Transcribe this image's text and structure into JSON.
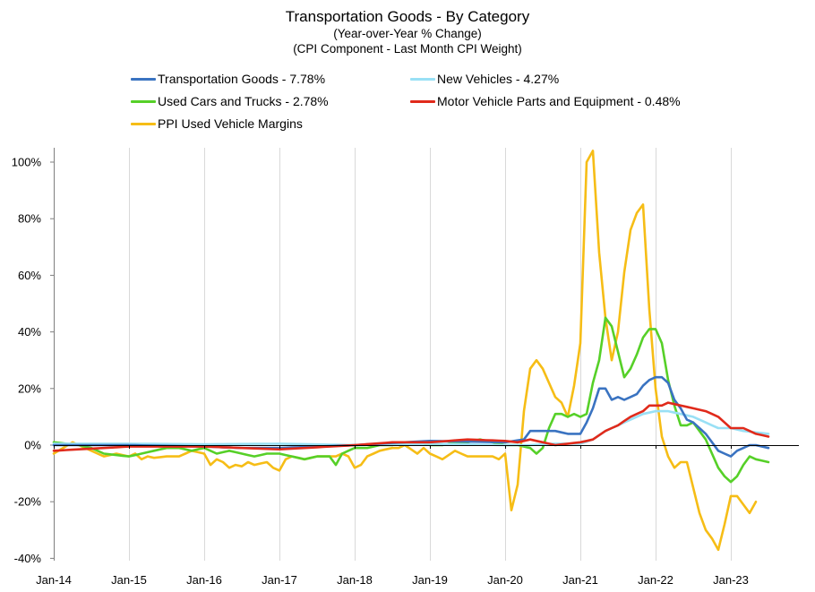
{
  "chart_data": {
    "type": "line",
    "title": "Transportation Goods - By Category",
    "subtitle_lines": [
      "(Year-over-Year % Change)",
      "(CPI Component - Last Month CPI Weight)"
    ],
    "xlabel": "",
    "ylabel": "",
    "x_start": "Jan-14",
    "months_count": 116,
    "x_tick_labels": [
      "Jan-14",
      "Jan-15",
      "Jan-16",
      "Jan-17",
      "Jan-18",
      "Jan-19",
      "Jan-20",
      "Jan-21",
      "Jan-22",
      "Jan-23"
    ],
    "x_tick_month_index": [
      0,
      12,
      24,
      36,
      48,
      60,
      72,
      84,
      96,
      108
    ],
    "ylim": [
      -40,
      105
    ],
    "y_ticks": [
      -40,
      -20,
      0,
      20,
      40,
      60,
      80,
      100
    ],
    "y_tick_labels": [
      "-40%",
      "-20%",
      "0%",
      "20%",
      "40%",
      "60%",
      "80%",
      "100%"
    ],
    "grid": "vertical",
    "legend_position": "top",
    "series": [
      {
        "name": "Transportation Goods - 7.78%",
        "color": "#3A73C1",
        "anchors": [
          [
            0,
            0
          ],
          [
            12,
            0
          ],
          [
            24,
            -0.5
          ],
          [
            30,
            -1
          ],
          [
            36,
            -1
          ],
          [
            48,
            0
          ],
          [
            60,
            1.5
          ],
          [
            72,
            1
          ],
          [
            75,
            2
          ],
          [
            76,
            5
          ],
          [
            80,
            5
          ],
          [
            82,
            4
          ],
          [
            84,
            4
          ],
          [
            85,
            8
          ],
          [
            86,
            13
          ],
          [
            87,
            20
          ],
          [
            88,
            20
          ],
          [
            89,
            16
          ],
          [
            90,
            17
          ],
          [
            91,
            16
          ],
          [
            93,
            18
          ],
          [
            94,
            21
          ],
          [
            95,
            23
          ],
          [
            96,
            24
          ],
          [
            97,
            24
          ],
          [
            98,
            22
          ],
          [
            99,
            16
          ],
          [
            100,
            13
          ],
          [
            101,
            9
          ],
          [
            102,
            8
          ],
          [
            103,
            6
          ],
          [
            104,
            4
          ],
          [
            105,
            1
          ],
          [
            106,
            -2
          ],
          [
            107,
            -3
          ],
          [
            108,
            -4
          ],
          [
            109,
            -2
          ],
          [
            110,
            -1
          ],
          [
            111,
            0
          ],
          [
            112,
            0
          ],
          [
            113,
            -0.5
          ],
          [
            114,
            -1
          ]
        ]
      },
      {
        "name": "New Vehicles - 4.27%",
        "color": "#99E0F5",
        "anchors": [
          [
            0,
            0.5
          ],
          [
            12,
            0.5
          ],
          [
            24,
            0.3
          ],
          [
            36,
            0.5
          ],
          [
            48,
            0
          ],
          [
            60,
            0.5
          ],
          [
            72,
            0
          ],
          [
            76,
            0
          ],
          [
            80,
            0.5
          ],
          [
            84,
            0.5
          ],
          [
            86,
            2
          ],
          [
            88,
            5
          ],
          [
            90,
            7
          ],
          [
            92,
            9
          ],
          [
            94,
            11
          ],
          [
            96,
            12
          ],
          [
            98,
            12
          ],
          [
            100,
            11
          ],
          [
            102,
            10
          ],
          [
            104,
            8
          ],
          [
            106,
            6
          ],
          [
            108,
            6
          ],
          [
            110,
            5
          ],
          [
            112,
            4.5
          ],
          [
            114,
            4
          ]
        ]
      },
      {
        "name": "Used Cars and Trucks - 2.78%",
        "color": "#56D028",
        "anchors": [
          [
            0,
            1
          ],
          [
            4,
            0
          ],
          [
            6,
            -1
          ],
          [
            8,
            -3
          ],
          [
            10,
            -3.5
          ],
          [
            12,
            -4
          ],
          [
            14,
            -3
          ],
          [
            16,
            -2
          ],
          [
            18,
            -1
          ],
          [
            20,
            -1
          ],
          [
            22,
            -2
          ],
          [
            24,
            -1
          ],
          [
            26,
            -3
          ],
          [
            28,
            -2
          ],
          [
            30,
            -3
          ],
          [
            32,
            -4
          ],
          [
            34,
            -3
          ],
          [
            36,
            -3
          ],
          [
            38,
            -4
          ],
          [
            40,
            -5
          ],
          [
            42,
            -4
          ],
          [
            44,
            -4
          ],
          [
            45,
            -7
          ],
          [
            46,
            -3
          ],
          [
            48,
            -1
          ],
          [
            50,
            -1
          ],
          [
            52,
            0
          ],
          [
            54,
            0
          ],
          [
            56,
            1
          ],
          [
            58,
            1
          ],
          [
            60,
            0
          ],
          [
            62,
            0
          ],
          [
            64,
            1
          ],
          [
            66,
            1
          ],
          [
            68,
            2
          ],
          [
            70,
            1
          ],
          [
            72,
            0
          ],
          [
            74,
            0
          ],
          [
            76,
            -1
          ],
          [
            77,
            -3
          ],
          [
            78,
            -1
          ],
          [
            79,
            6
          ],
          [
            80,
            11
          ],
          [
            81,
            11
          ],
          [
            82,
            10
          ],
          [
            83,
            11
          ],
          [
            84,
            10
          ],
          [
            85,
            11
          ],
          [
            86,
            22
          ],
          [
            87,
            30
          ],
          [
            88,
            45
          ],
          [
            89,
            42
          ],
          [
            90,
            33
          ],
          [
            91,
            24
          ],
          [
            92,
            27
          ],
          [
            93,
            32
          ],
          [
            94,
            38
          ],
          [
            95,
            41
          ],
          [
            96,
            41
          ],
          [
            97,
            36
          ],
          [
            98,
            23
          ],
          [
            99,
            14
          ],
          [
            100,
            7
          ],
          [
            101,
            7
          ],
          [
            102,
            8
          ],
          [
            103,
            5
          ],
          [
            104,
            2
          ],
          [
            105,
            -3
          ],
          [
            106,
            -8
          ],
          [
            107,
            -11
          ],
          [
            108,
            -13
          ],
          [
            109,
            -11
          ],
          [
            110,
            -7
          ],
          [
            111,
            -4
          ],
          [
            112,
            -5
          ],
          [
            113,
            -5.5
          ],
          [
            114,
            -6
          ]
        ]
      },
      {
        "name": "Motor Vehicle Parts and Equipment - 0.48%",
        "color": "#E02A1B",
        "anchors": [
          [
            0,
            -2
          ],
          [
            12,
            -0.5
          ],
          [
            24,
            -0.5
          ],
          [
            30,
            -1
          ],
          [
            36,
            -1.5
          ],
          [
            48,
            0
          ],
          [
            54,
            1
          ],
          [
            60,
            1
          ],
          [
            66,
            2
          ],
          [
            72,
            1.5
          ],
          [
            74,
            1
          ],
          [
            76,
            2
          ],
          [
            80,
            0
          ],
          [
            84,
            1
          ],
          [
            86,
            2
          ],
          [
            88,
            5
          ],
          [
            90,
            7
          ],
          [
            92,
            10
          ],
          [
            94,
            12
          ],
          [
            95,
            14
          ],
          [
            97,
            14
          ],
          [
            98,
            15
          ],
          [
            100,
            14
          ],
          [
            102,
            13
          ],
          [
            104,
            12
          ],
          [
            106,
            10
          ],
          [
            107,
            8
          ],
          [
            108,
            6
          ],
          [
            110,
            6
          ],
          [
            112,
            4
          ],
          [
            114,
            3
          ]
        ]
      },
      {
        "name": "PPI Used Vehicle Margins",
        "color": "#F6BD16",
        "anchors": [
          [
            0,
            -3
          ],
          [
            3,
            1
          ],
          [
            6,
            -2
          ],
          [
            8,
            -4
          ],
          [
            10,
            -3
          ],
          [
            12,
            -4
          ],
          [
            13,
            -3
          ],
          [
            14,
            -5
          ],
          [
            15,
            -4
          ],
          [
            16,
            -4.5
          ],
          [
            18,
            -4
          ],
          [
            20,
            -4
          ],
          [
            22,
            -2
          ],
          [
            24,
            -3
          ],
          [
            25,
            -7
          ],
          [
            26,
            -5
          ],
          [
            27,
            -6
          ],
          [
            28,
            -8
          ],
          [
            29,
            -7
          ],
          [
            30,
            -7.5
          ],
          [
            31,
            -6
          ],
          [
            32,
            -7
          ],
          [
            34,
            -6
          ],
          [
            35,
            -8
          ],
          [
            36,
            -9
          ],
          [
            37,
            -5
          ],
          [
            38,
            -4
          ],
          [
            40,
            -5
          ],
          [
            42,
            -4
          ],
          [
            44,
            -4
          ],
          [
            45,
            -4
          ],
          [
            46,
            -3
          ],
          [
            47,
            -4
          ],
          [
            48,
            -8
          ],
          [
            49,
            -7
          ],
          [
            50,
            -4
          ],
          [
            52,
            -2
          ],
          [
            54,
            -1
          ],
          [
            55,
            -1
          ],
          [
            56,
            0
          ],
          [
            58,
            -3
          ],
          [
            59,
            -1
          ],
          [
            60,
            -3
          ],
          [
            61,
            -4
          ],
          [
            62,
            -5
          ],
          [
            64,
            -2
          ],
          [
            66,
            -4
          ],
          [
            68,
            -4
          ],
          [
            70,
            -4
          ],
          [
            71,
            -5
          ],
          [
            72,
            -3
          ],
          [
            73,
            -23
          ],
          [
            74,
            -14
          ],
          [
            75,
            12
          ],
          [
            76,
            27
          ],
          [
            77,
            30
          ],
          [
            78,
            27
          ],
          [
            79,
            22
          ],
          [
            80,
            17
          ],
          [
            81,
            15
          ],
          [
            82,
            10
          ],
          [
            83,
            21
          ],
          [
            84,
            36
          ],
          [
            85,
            100
          ],
          [
            86,
            104
          ],
          [
            87,
            68
          ],
          [
            88,
            45
          ],
          [
            89,
            30
          ],
          [
            90,
            40
          ],
          [
            91,
            61
          ],
          [
            92,
            76
          ],
          [
            93,
            82
          ],
          [
            94,
            85
          ],
          [
            95,
            48
          ],
          [
            96,
            20
          ],
          [
            97,
            3
          ],
          [
            98,
            -4
          ],
          [
            99,
            -8
          ],
          [
            100,
            -6
          ],
          [
            101,
            -6
          ],
          [
            102,
            -15
          ],
          [
            103,
            -24
          ],
          [
            104,
            -30
          ],
          [
            105,
            -33
          ],
          [
            106,
            -37
          ],
          [
            107,
            -28
          ],
          [
            108,
            -18
          ],
          [
            109,
            -18
          ],
          [
            110,
            -21
          ],
          [
            111,
            -24
          ],
          [
            112,
            -20
          ]
        ]
      }
    ]
  }
}
